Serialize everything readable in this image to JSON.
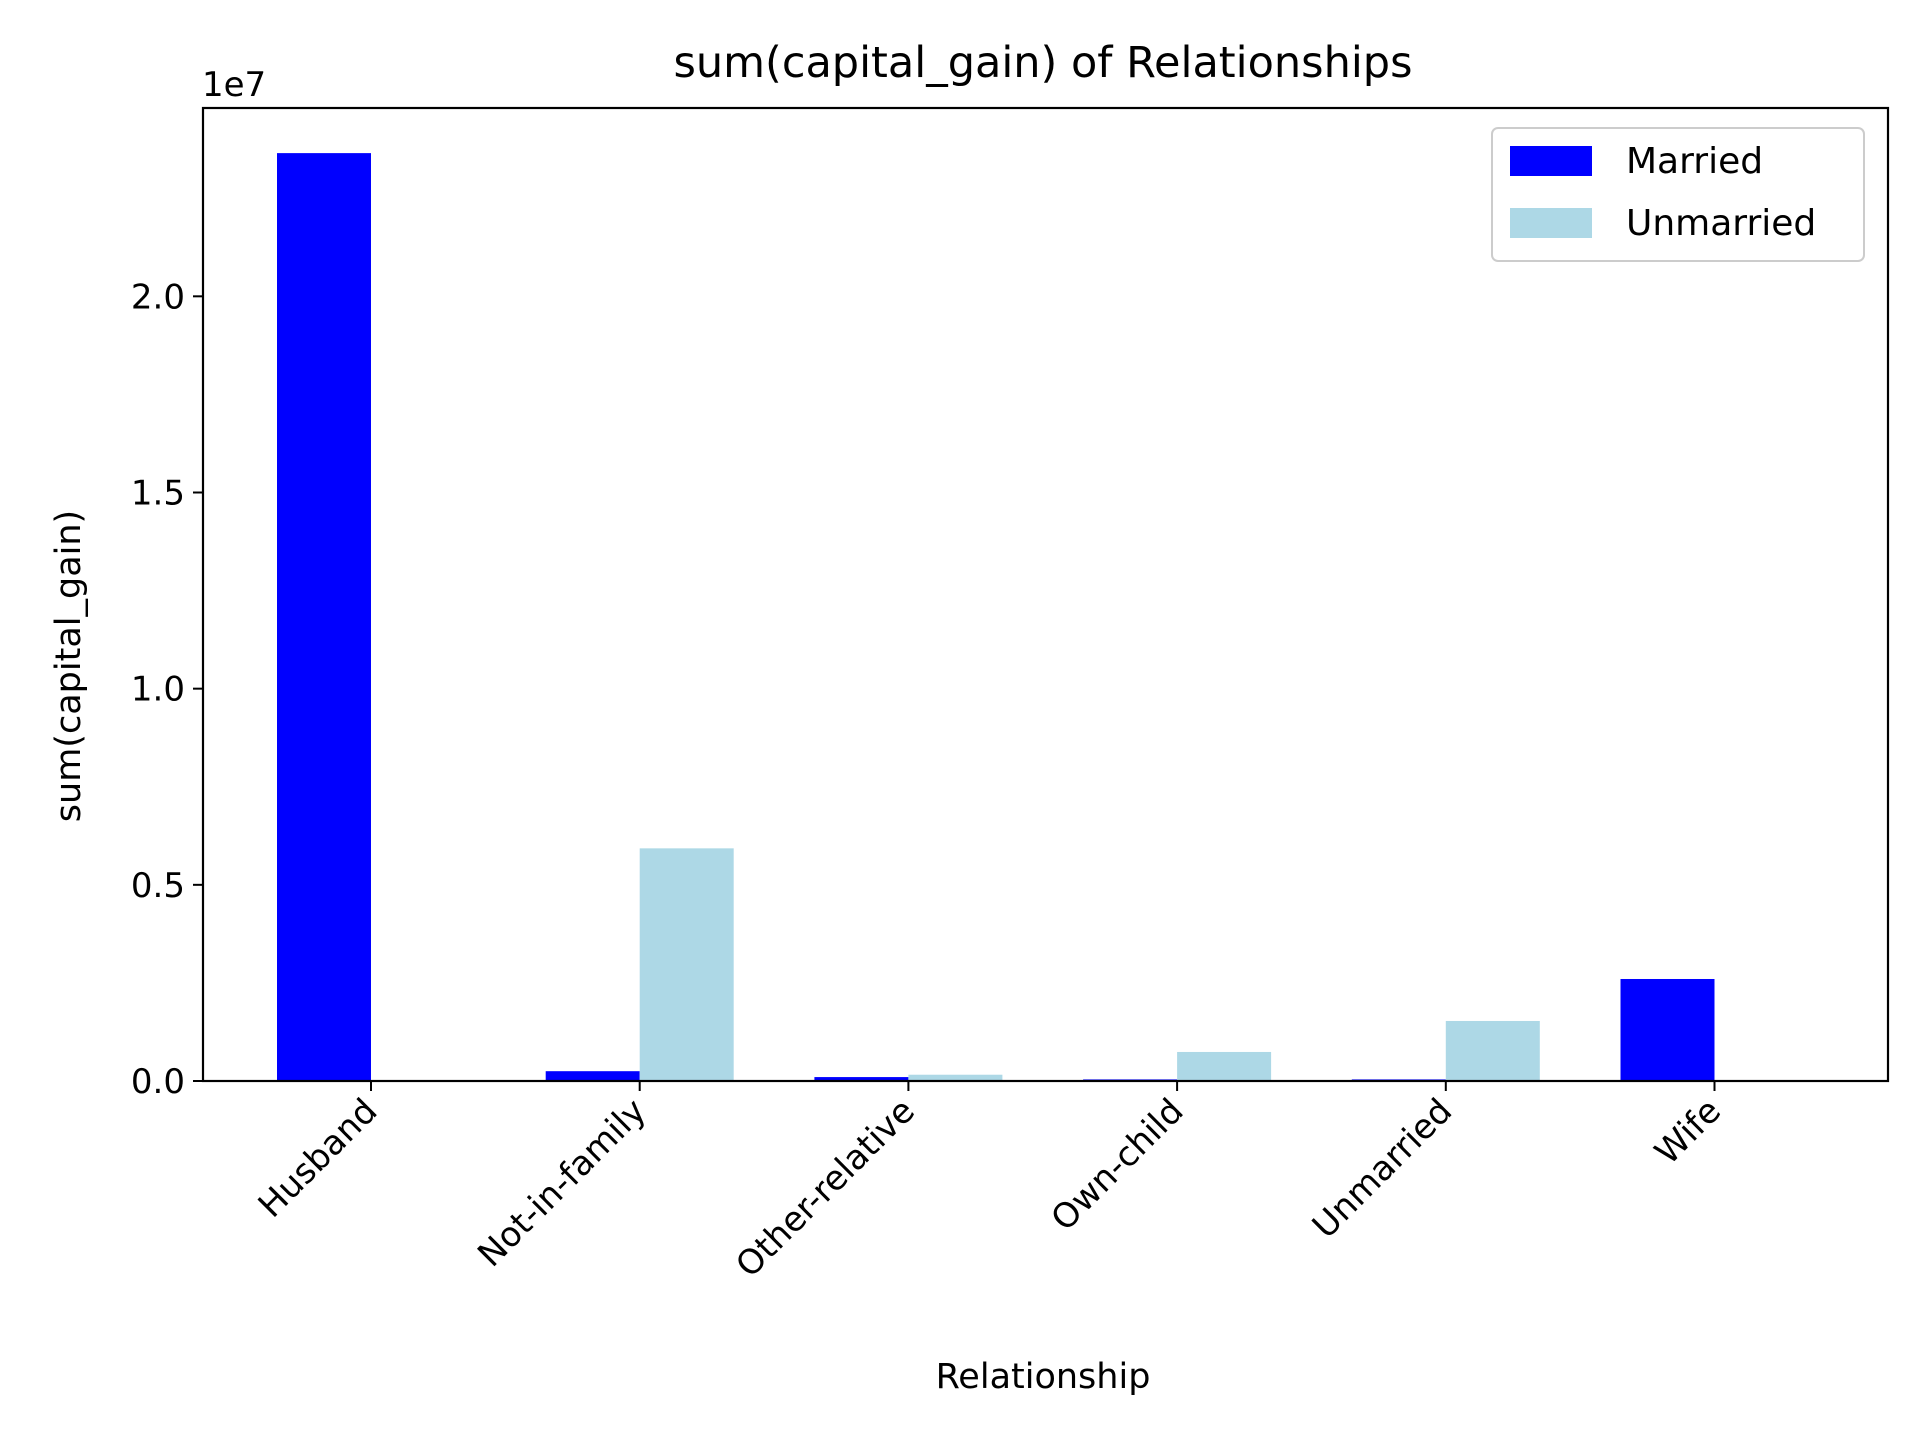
{
  "chart_data": {
    "type": "bar",
    "title": "sum(capital_gain) of Relationships",
    "xlabel": "Relationship",
    "ylabel": "sum(capital_gain)",
    "y_offset_label": "1e7",
    "y_scale": 10000000,
    "ylim": [
      0,
      24800000
    ],
    "yticks": [
      0,
      5000000,
      10000000,
      15000000,
      20000000
    ],
    "ytick_labels": [
      "0.0",
      "0.5",
      "1.0",
      "1.5",
      "2.0"
    ],
    "categories": [
      "Husband",
      "Not-in-family",
      "Other-relative",
      "Own-child",
      "Unmarried",
      "Wife"
    ],
    "series": [
      {
        "name": "Married",
        "color": "#0000ff",
        "values": [
          23650000,
          250000,
          100000,
          40000,
          40000,
          2600000
        ]
      },
      {
        "name": "Unmarried",
        "color": "#add8e6",
        "values": [
          0,
          5930000,
          160000,
          740000,
          1530000,
          0
        ]
      }
    ],
    "legend_position": "top-right",
    "grid": false
  }
}
